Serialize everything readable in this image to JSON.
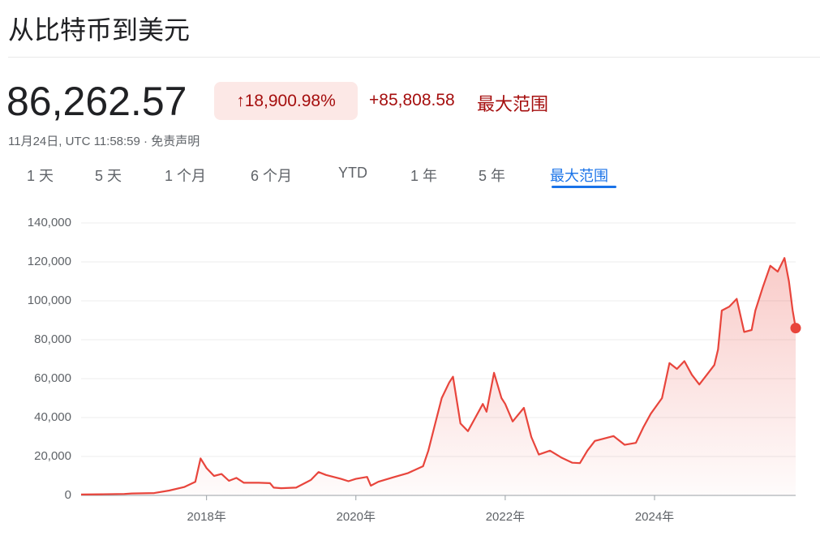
{
  "header": {
    "title": "从比特币到美元",
    "price": "86,262.57",
    "change_pct": "18,900.98%",
    "change_abs": "+85,808.58",
    "range_label": "最大范围",
    "timestamp": "11月24日, UTC 11:58:59 · 免责声明"
  },
  "tabs": [
    "1 天",
    "5 天",
    "1 个月",
    "6 个月",
    "YTD",
    "1 年",
    "5 年",
    "最大范围"
  ],
  "active_tab": 7,
  "chart_data": {
    "type": "line",
    "color": "#e8453c",
    "grid": true,
    "x": [
      2016.32,
      2016.6,
      2016.9,
      2017.0,
      2017.3,
      2017.5,
      2017.7,
      2017.85,
      2017.92,
      2018.0,
      2018.1,
      2018.2,
      2018.3,
      2018.4,
      2018.5,
      2018.7,
      2018.85,
      2018.9,
      2019.0,
      2019.2,
      2019.4,
      2019.5,
      2019.6,
      2019.8,
      2019.9,
      2020.0,
      2020.15,
      2020.2,
      2020.3,
      2020.5,
      2020.7,
      2020.9,
      2020.97,
      2021.05,
      2021.15,
      2021.25,
      2021.3,
      2021.4,
      2021.5,
      2021.6,
      2021.7,
      2021.75,
      2021.85,
      2021.95,
      2022.0,
      2022.1,
      2022.25,
      2022.35,
      2022.45,
      2022.6,
      2022.75,
      2022.9,
      2023.0,
      2023.1,
      2023.2,
      2023.3,
      2023.45,
      2023.6,
      2023.75,
      2023.85,
      2023.95,
      2024.1,
      2024.2,
      2024.3,
      2024.4,
      2024.5,
      2024.6,
      2024.7,
      2024.8,
      2024.85,
      2024.9,
      2025.0,
      2025.1,
      2025.2,
      2025.3,
      2025.35,
      2025.45,
      2025.55,
      2025.65,
      2025.74,
      2025.8,
      2025.85,
      2025.89
    ],
    "values": [
      450,
      600,
      750,
      1000,
      1200,
      2500,
      4300,
      7000,
      19000,
      14000,
      10000,
      11000,
      7500,
      9000,
      6500,
      6500,
      6300,
      4000,
      3700,
      4000,
      8000,
      12000,
      10500,
      8500,
      7300,
      8500,
      9500,
      5000,
      7000,
      9300,
      11500,
      15000,
      23000,
      35000,
      50000,
      58000,
      61000,
      37000,
      33000,
      40000,
      47000,
      43000,
      63000,
      50000,
      47000,
      38000,
      45000,
      30000,
      21000,
      23000,
      19500,
      16800,
      16600,
      23000,
      28000,
      29000,
      30500,
      26000,
      27000,
      35000,
      42000,
      50000,
      68000,
      65000,
      69000,
      62000,
      57000,
      62000,
      67000,
      75000,
      95000,
      97000,
      101000,
      84000,
      85000,
      95000,
      107000,
      118000,
      115000,
      122000,
      110000,
      95000,
      86000
    ],
    "xlim": [
      2016.32,
      2025.89
    ],
    "xticks": [
      {
        "value": 2018,
        "label": "2018年"
      },
      {
        "value": 2020,
        "label": "2020年"
      },
      {
        "value": 2022,
        "label": "2022年"
      },
      {
        "value": 2024,
        "label": "2024年"
      }
    ],
    "ylim": [
      0,
      140000
    ],
    "yticks": [
      0,
      {
        "value": 20000,
        "label": "20,000"
      },
      {
        "value": 40000,
        "label": "40,000"
      },
      {
        "value": 60000,
        "label": "60,000"
      },
      {
        "value": 80000,
        "label": "80,000"
      },
      {
        "value": 100000,
        "label": "100,000"
      },
      {
        "value": 120000,
        "label": "120,000"
      },
      {
        "value": 140000,
        "label": "140,000"
      }
    ]
  }
}
